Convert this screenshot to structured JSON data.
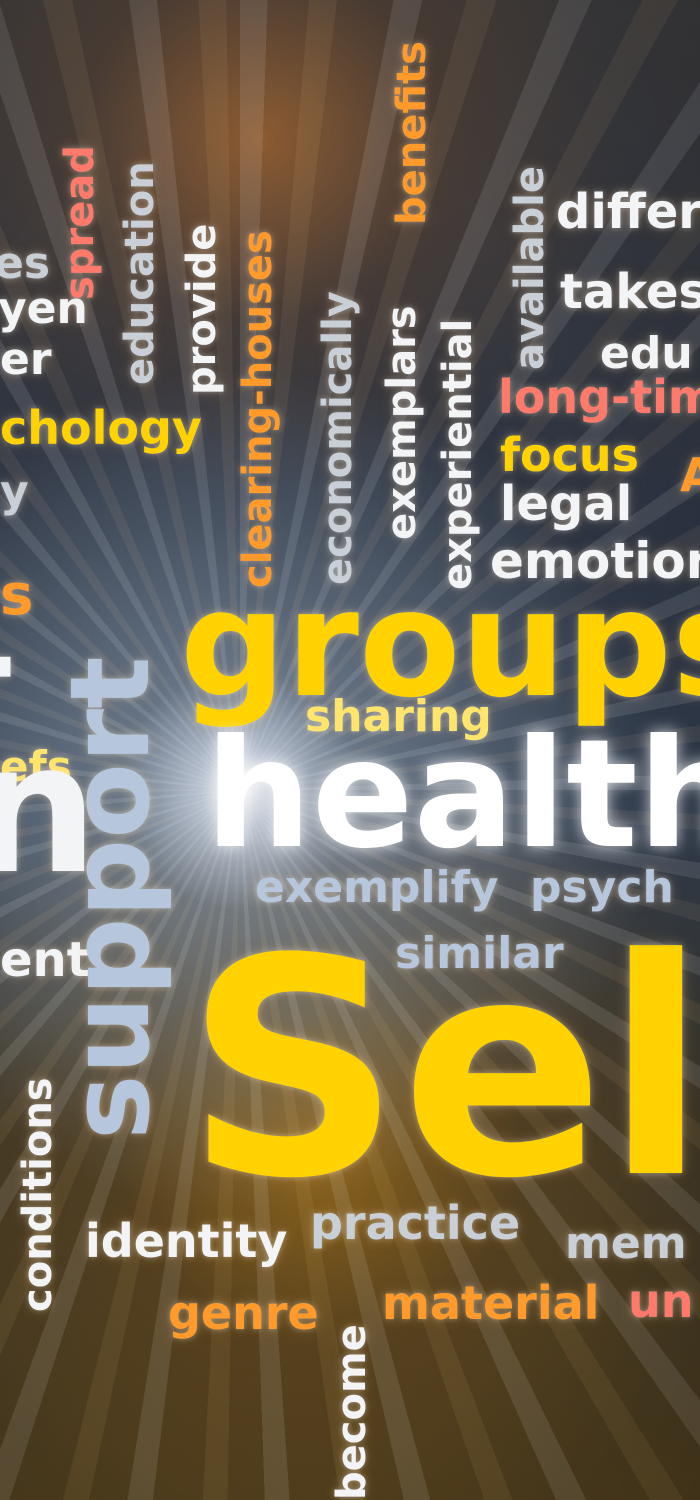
{
  "image": {
    "description_words": [
      "groups",
      "health",
      "Sel",
      "support",
      "sharing",
      "exemplify",
      "psych",
      "similar",
      "identity",
      "practice",
      "mem",
      "genre",
      "material",
      "un",
      "conditions",
      "become",
      "chology",
      "ent",
      "efs",
      "s",
      "y",
      "er",
      "yen",
      "es",
      "spread",
      "education",
      "provide",
      "clearing-houses",
      "economically",
      "exemplars",
      "benefits",
      "experiential",
      "available",
      "differ",
      "takes",
      "edu",
      "long-tim",
      "focus",
      "legal",
      "emotion",
      "A"
    ]
  },
  "colors": {
    "yellow": "#ffd200",
    "light_yellow": "#ffe56b",
    "orange": "#ff9a2b",
    "pink": "#ff7a6b",
    "white": "#f3f4f6",
    "gray": "#c9cfd6",
    "blue_gray": "#b6c7dd"
  }
}
